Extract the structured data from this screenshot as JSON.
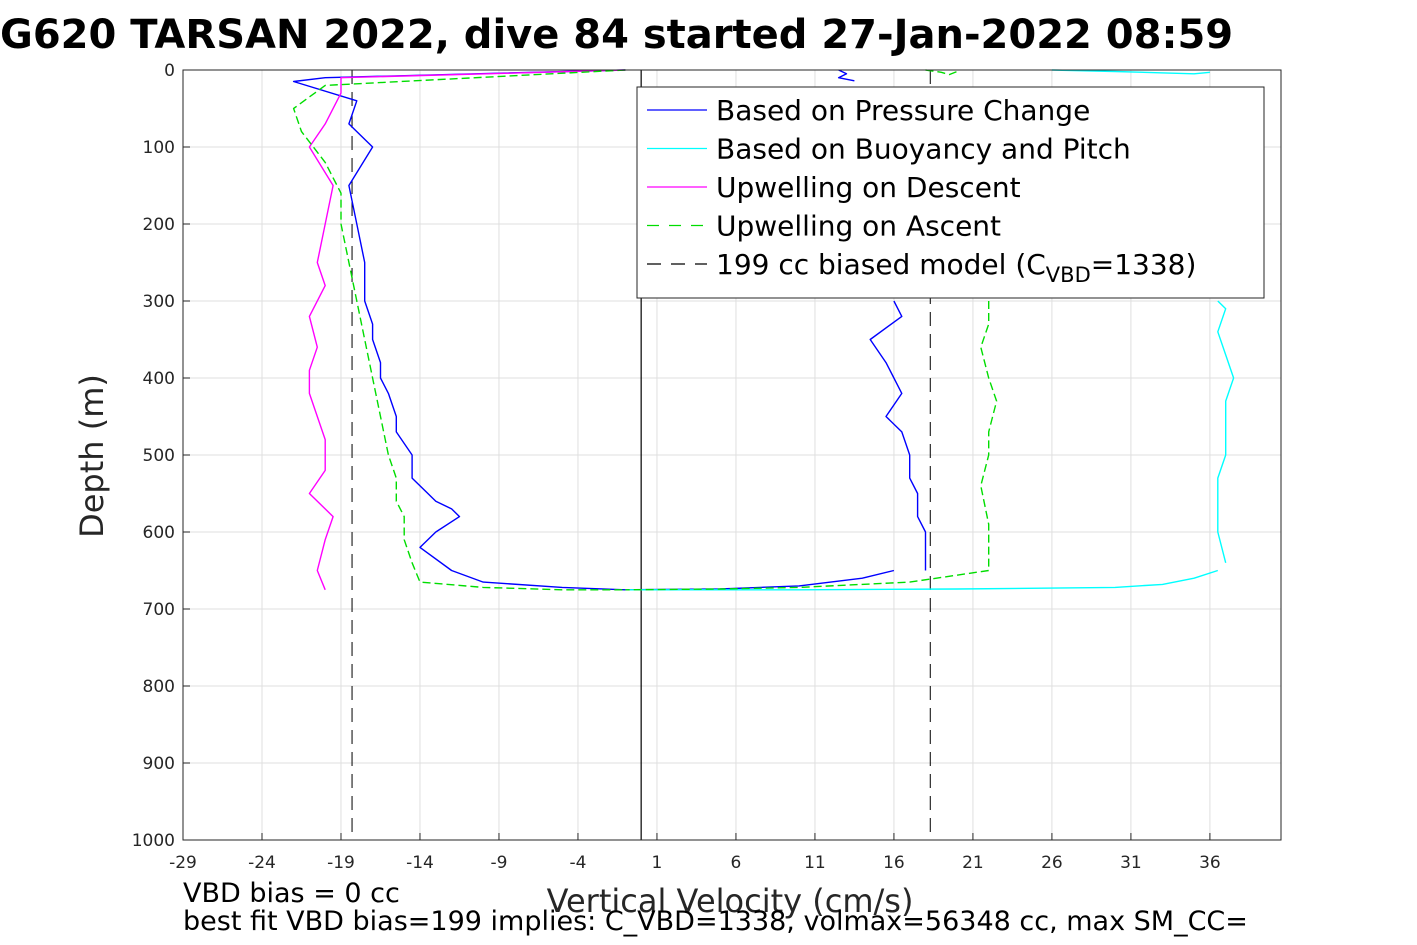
{
  "chart_data": {
    "type": "line",
    "title": "G620 TARSAN 2022, dive 84 started 27-Jan-2022 08:59",
    "xlabel": "Vertical Velocity (cm/s)",
    "ylabel": "Depth (m)",
    "xlim": [
      -29,
      40.5
    ],
    "ylim": [
      0,
      1000
    ],
    "y_reversed": true,
    "xticks": [
      -29,
      -24,
      -19,
      -14,
      -9,
      -4,
      1,
      6,
      11,
      16,
      21,
      26,
      31,
      36
    ],
    "yticks": [
      0,
      100,
      200,
      300,
      400,
      500,
      600,
      700,
      800,
      900,
      1000
    ],
    "grid": true,
    "legend_position": "top-right",
    "legend": [
      {
        "key": "pressure",
        "label": "Based on Pressure Change",
        "color": "#0000ff",
        "dash": "solid"
      },
      {
        "key": "buoyancy",
        "label": "Based on Buoyancy and Pitch",
        "color": "#00ffff",
        "dash": "solid"
      },
      {
        "key": "up_desc",
        "label": "Upwelling on Descent",
        "color": "#ff00ff",
        "dash": "solid"
      },
      {
        "key": "up_asc",
        "label": "Upwelling on Ascent",
        "color": "#00dd00",
        "dash": "dashed"
      },
      {
        "key": "model",
        "label_pre": "199 cc biased model (C",
        "label_sub": "VBD",
        "label_post": "=1338)",
        "color": "#000000",
        "dash": "dashed"
      }
    ],
    "zero_line": {
      "x": 0,
      "color": "#000000"
    },
    "model_lines_x": [
      -18.3,
      18.3
    ],
    "series": [
      {
        "key": "pressure",
        "color": "#0000ff",
        "dash": "solid",
        "segments": [
          {
            "x": [
              -1,
              -20,
              -22,
              -18,
              -18.5,
              -17,
              -18.5,
              -18,
              -17.5,
              -17.5,
              -17,
              -17,
              -16.5,
              -16.5,
              -16,
              -15.5,
              -15.5,
              -14.5,
              -14.5,
              -13.5,
              -13,
              -12,
              -11.5,
              -13,
              -14,
              -12,
              -10,
              -5,
              -1,
              5,
              10,
              14,
              16
            ],
            "y": [
              0,
              10,
              15,
              40,
              70,
              100,
              150,
              200,
              250,
              300,
              330,
              350,
              380,
              400,
              420,
              450,
              470,
              500,
              530,
              550,
              560,
              570,
              580,
              600,
              620,
              650,
              665,
              672,
              675,
              674,
              670,
              660,
              650
            ]
          },
          {
            "x": [
              16,
              16.5,
              14.5,
              15.5,
              16,
              16.5,
              15.5,
              16.5,
              17,
              17,
              17.5,
              17.5,
              18,
              18,
              18,
              18
            ],
            "y": [
              300,
              320,
              350,
              380,
              400,
              420,
              450,
              470,
              500,
              530,
              550,
              580,
              600,
              620,
              640,
              650
            ]
          },
          {
            "x": [
              12.5,
              13,
              12.5,
              13.5
            ],
            "y": [
              0,
              5,
              10,
              14
            ]
          }
        ]
      },
      {
        "key": "buoyancy",
        "color": "#00ffff",
        "dash": "solid",
        "segments": [
          {
            "x": [
              -1,
              10,
              20,
              30,
              33,
              35,
              36.5
            ],
            "y": [
              675,
              675,
              674,
              672,
              668,
              660,
              650
            ]
          },
          {
            "x": [
              36.5,
              37,
              36.5,
              37,
              37.5,
              37,
              37,
              37,
              36.5,
              36.5,
              36.5,
              37
            ],
            "y": [
              300,
              310,
              340,
              370,
              400,
              430,
              470,
              500,
              530,
              570,
              600,
              640
            ]
          },
          {
            "x": [
              26,
              30,
              35,
              36
            ],
            "y": [
              0,
              2,
              5,
              3
            ]
          }
        ]
      },
      {
        "key": "up_desc",
        "color": "#ff00ff",
        "dash": "solid",
        "segments": [
          {
            "x": [
              -1,
              -19,
              -19,
              -20,
              -21,
              -19.5,
              -20,
              -20.5,
              -20,
              -21,
              -20.5,
              -21,
              -21,
              -20.5,
              -20,
              -20,
              -21,
              -19.5,
              -20,
              -20.5,
              -20
            ],
            "y": [
              0,
              10,
              30,
              70,
              100,
              150,
              200,
              250,
              280,
              320,
              360,
              390,
              420,
              450,
              480,
              520,
              550,
              580,
              610,
              650,
              675
            ]
          }
        ]
      },
      {
        "key": "up_asc",
        "color": "#00dd00",
        "dash": "dashed",
        "segments": [
          {
            "x": [
              -1,
              -20,
              -22,
              -21.5,
              -20,
              -19,
              -19,
              -18.5,
              -18,
              -17.5,
              -17,
              -16.5,
              -16,
              -15.5,
              -15.5,
              -15,
              -15,
              -14.5,
              -14,
              -10,
              -5,
              -1
            ],
            "y": [
              0,
              20,
              50,
              80,
              120,
              160,
              200,
              250,
              300,
              350,
              400,
              450,
              500,
              530,
              560,
              580,
              610,
              640,
              665,
              672,
              675,
              675
            ]
          },
          {
            "x": [
              22,
              22,
              21.5,
              22,
              22.5,
              22,
              22,
              21.5,
              22,
              22
            ],
            "y": [
              300,
              330,
              360,
              400,
              430,
              470,
              500,
              540,
              590,
              650
            ]
          },
          {
            "x": [
              18,
              19,
              19.5,
              20
            ],
            "y": [
              0,
              3,
              6,
              2
            ]
          },
          {
            "x": [
              22,
              17,
              10,
              5,
              -1
            ],
            "y": [
              650,
              665,
              672,
              674,
              675
            ]
          }
        ]
      }
    ]
  },
  "footer": {
    "line1": "VBD bias = 0 cc",
    "line2": "best fit VBD bias=199 implies: C_VBD=1338, volmax=56348 cc, max SM_CC="
  }
}
